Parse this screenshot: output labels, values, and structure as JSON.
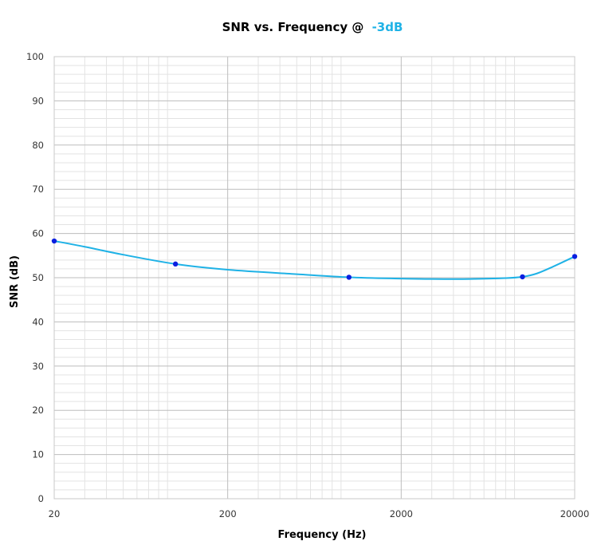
{
  "chart_data": {
    "type": "line",
    "title": "SNR vs. Frequency @",
    "title_highlight": "-3dB",
    "xlabel": "Frequency (Hz)",
    "ylabel": "SNR (dB)",
    "x_scale": "log",
    "xlim": [
      20,
      20000
    ],
    "ylim": [
      0,
      100
    ],
    "x_ticks": [
      20,
      200,
      2000,
      20000
    ],
    "x_tick_labels": [
      "20",
      "200",
      "2000",
      "20000"
    ],
    "y_ticks": [
      0,
      10,
      20,
      30,
      40,
      50,
      60,
      70,
      80,
      90,
      100
    ],
    "y_tick_labels": [
      "0",
      "10",
      "20",
      "30",
      "40",
      "50",
      "60",
      "70",
      "80",
      "90",
      "100"
    ],
    "grid": true,
    "series": [
      {
        "x": [
          20,
          100,
          1000,
          10000,
          20000
        ],
        "y": [
          58.3,
          53.1,
          50.1,
          50.2,
          54.8
        ],
        "curve": {
          "x": [
            20,
            30,
            50,
            100,
            200,
            500,
            1000,
            2000,
            3000,
            5000,
            8000,
            10000,
            12000,
            15000,
            20000
          ],
          "y": [
            58.3,
            57.0,
            55.2,
            53.1,
            51.8,
            50.8,
            50.1,
            49.8,
            49.7,
            49.7,
            49.9,
            50.2,
            50.9,
            52.5,
            54.8
          ]
        }
      }
    ],
    "colors": {
      "line": "#1fb2e6",
      "marker": "#0b1fe0",
      "title_highlight": "#1fb2e6",
      "major_grid": "#bdbdbd",
      "minor_grid": "#e3e3e3",
      "plot_border": "#c8c8c8"
    }
  }
}
